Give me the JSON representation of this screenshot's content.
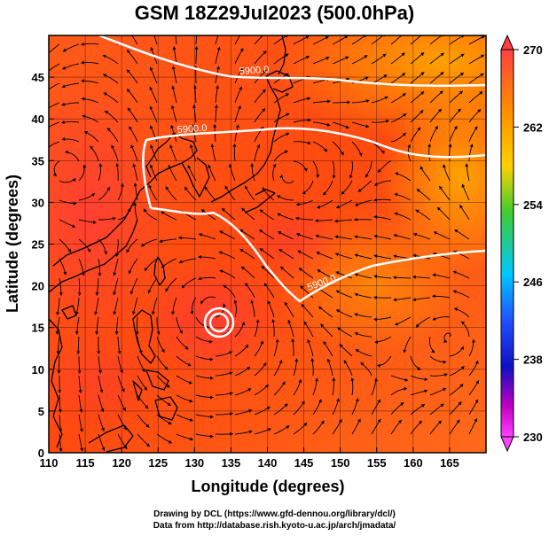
{
  "title": "GSM 18Z29Jul2023 (500.0hPa)",
  "axes": {
    "xlabel": "Longitude (degrees)",
    "ylabel": "Latitude  (degrees)",
    "x_ticks": [
      "110",
      "115",
      "120",
      "125",
      "130",
      "135",
      "140",
      "145",
      "150",
      "155",
      "160",
      "165"
    ],
    "y_ticks": [
      "0",
      "5",
      "10",
      "15",
      "20",
      "25",
      "30",
      "35",
      "40",
      "45"
    ],
    "xlim": [
      110,
      170
    ],
    "ylim": [
      0,
      50
    ]
  },
  "colorbar": {
    "labels": [
      "270",
      "262",
      "254",
      "246",
      "238",
      "230"
    ],
    "range": [
      230,
      270
    ],
    "colors": [
      "#ff3030",
      "#ff8000",
      "#ffcc00",
      "#33cc33",
      "#00c0ff",
      "#2040ff",
      "#c000c0",
      "#ff40ff"
    ]
  },
  "contour_labels": [
    "5900.0",
    "5900.0",
    "5900.0"
  ],
  "footer": {
    "line1": "Drawing by DCL (https://www.gfd-dennou.org/library/dcl/)",
    "line2": "Data from http://database.rish.kyoto-u.ac.jp/arch/jmadata/"
  },
  "chart_data": {
    "type": "heatmap",
    "title": "GSM 18Z29Jul2023 (500.0hPa)",
    "xlabel": "Longitude (degrees)",
    "ylabel": "Latitude  (degrees)",
    "xlim": [
      110,
      170
    ],
    "ylim": [
      0,
      50
    ],
    "colorbar_range": [
      230,
      270
    ],
    "contours": [
      {
        "label": "5900.0",
        "lon": [
          116,
          125,
          133,
          141,
          150,
          158,
          170
        ],
        "lat": [
          43,
          41.5,
          43,
          44.5,
          45.5,
          47,
          46.5
        ]
      },
      {
        "label": "5900.0",
        "lon": [
          122,
          124,
          131,
          135,
          141,
          145,
          150,
          157,
          170
        ],
        "lat": [
          40,
          31,
          29,
          31,
          25,
          19.5,
          22,
          25.5,
          24
        ]
      },
      {
        "label": "5900.0",
        "lon": [
          134,
          137,
          147,
          155,
          162,
          170
        ],
        "lat": [
          39.5,
          40.5,
          39.5,
          38,
          37.5,
          37.5
        ]
      }
    ],
    "vortices": [
      {
        "lon": 132.5,
        "lat": 17.5
      },
      {
        "lon": 143,
        "lat": 33
      },
      {
        "lon": 112,
        "lat": 34
      },
      {
        "lon": 165,
        "lat": 14
      }
    ]
  }
}
